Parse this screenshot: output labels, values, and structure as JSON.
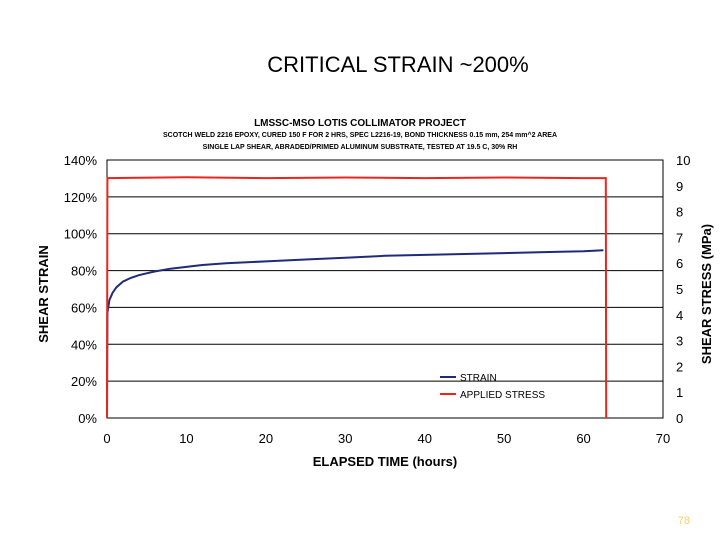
{
  "slide": {
    "title": "CRITICAL STRAIN ~200%",
    "page_number": "78"
  },
  "chart_data": {
    "type": "line",
    "title": "LMSSC-MSO LOTIS COLLIMATOR PROJECT",
    "subtitle_lines": [
      "SCOTCH WELD 2216 EPOXY, CURED 150 F FOR 2 HRS, SPEC L2216-19, BOND THICKNESS 0.15 mm, 254 mm^2 AREA",
      "SINGLE LAP SHEAR, ABRADED/PRIMED ALUMINUM SUBSTRATE, TESTED AT 19.5 C, 30% RH"
    ],
    "xlabel": "ELAPSED TIME (hours)",
    "ylabel": "SHEAR STRAIN",
    "y2label": "SHEAR STRESS (MPa)",
    "xlim": [
      0,
      70
    ],
    "ylim": [
      0,
      1.4
    ],
    "y2lim": [
      0,
      10
    ],
    "x_ticks": [
      "0",
      "10",
      "20",
      "30",
      "40",
      "50",
      "60",
      "70"
    ],
    "y_ticks": [
      "0%",
      "20%",
      "40%",
      "60%",
      "80%",
      "100%",
      "120%",
      "140%"
    ],
    "y2_ticks": [
      "0",
      "1",
      "2",
      "3",
      "4",
      "5",
      "6",
      "7",
      "8",
      "9",
      "10"
    ],
    "grid": "horizontal",
    "legend_position": "lower-right",
    "colors": {
      "strain": "#1f2a7a",
      "stress": "#e8261c"
    },
    "series": [
      {
        "name": "STRAIN",
        "axis": "left",
        "x": [
          0,
          0.05,
          0.3,
          0.7,
          1.2,
          2,
          3,
          4,
          5,
          6,
          8,
          10,
          12,
          15,
          20,
          25,
          30,
          35,
          40,
          45,
          50,
          55,
          60,
          62.5
        ],
        "y": [
          0.0,
          0.57,
          0.64,
          0.68,
          0.71,
          0.74,
          0.76,
          0.775,
          0.785,
          0.795,
          0.81,
          0.82,
          0.83,
          0.84,
          0.85,
          0.86,
          0.87,
          0.88,
          0.885,
          0.89,
          0.895,
          0.9,
          0.905,
          0.91
        ]
      },
      {
        "name": "APPLIED STRESS",
        "axis": "right",
        "x": [
          0,
          0.05,
          0.2,
          10,
          20,
          30,
          40,
          50,
          60,
          62.8,
          62.85
        ],
        "y": [
          0,
          9.3,
          9.3,
          9.33,
          9.3,
          9.32,
          9.3,
          9.32,
          9.3,
          9.3,
          0
        ]
      }
    ]
  }
}
